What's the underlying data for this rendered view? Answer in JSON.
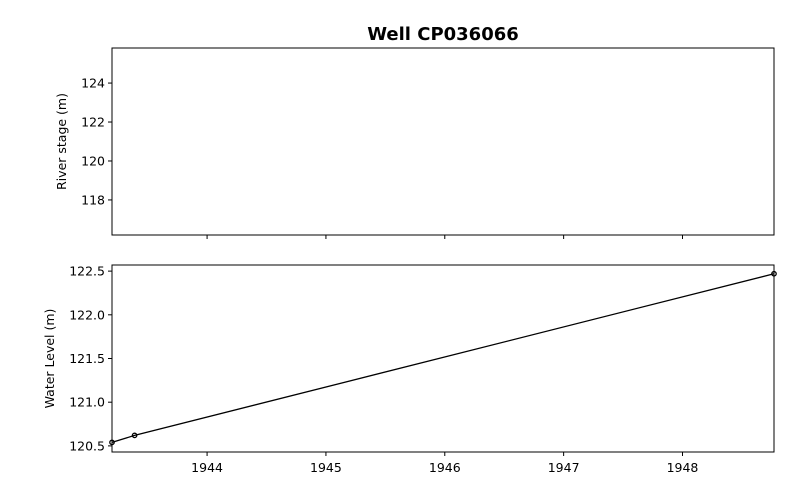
{
  "chart_data": [
    {
      "type": "line",
      "title": "Well CP036066",
      "xlabel": "",
      "ylabel": "River stage (m)",
      "xlim": [
        1943.2,
        1948.77
      ],
      "ylim": [
        116.2,
        125.8
      ],
      "xticks": [
        1944,
        1945,
        1946,
        1947,
        1948
      ],
      "yticks": [
        118,
        120,
        122,
        124
      ],
      "show_x_tick_labels": false,
      "grid": false,
      "series": [
        {
          "values": [],
          "color": "#000000"
        }
      ]
    },
    {
      "type": "line",
      "xlabel": "",
      "ylabel": "Water Level (m)",
      "xlim": [
        1943.2,
        1948.77
      ],
      "ylim": [
        120.43,
        122.57
      ],
      "xticks": [
        1944,
        1945,
        1946,
        1947,
        1948
      ],
      "yticks": [
        120.5,
        121.0,
        121.5,
        122.0,
        122.5
      ],
      "show_x_tick_labels": true,
      "grid": false,
      "series": [
        {
          "x": [
            1943.2,
            1943.39,
            1948.77
          ],
          "values": [
            120.54,
            120.62,
            122.47
          ],
          "color": "#000000",
          "marker": "circle"
        }
      ]
    }
  ]
}
